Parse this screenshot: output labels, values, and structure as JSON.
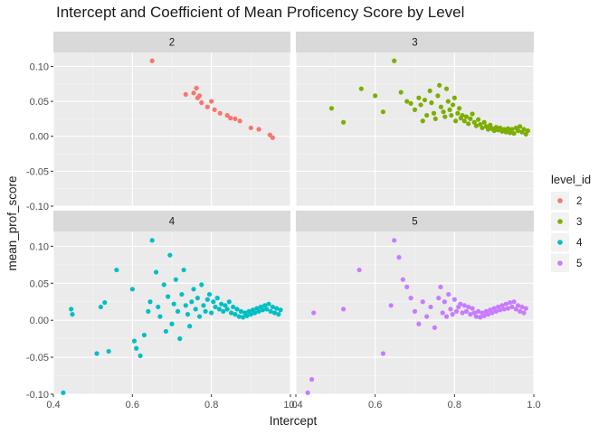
{
  "chart_data": {
    "type": "scatter",
    "title": "Intercept and Coefficient of Mean Proficency Score by Level",
    "xlabel": "Intercept",
    "ylabel": "mean_prof_score",
    "facet_by": "level_id",
    "xlim": [
      0.4,
      1.0
    ],
    "ylim": [
      -0.1,
      0.12
    ],
    "x_ticks": [
      0.4,
      0.6,
      0.8,
      1.0
    ],
    "x_tick_labels": [
      "0.4",
      "0.6",
      "0.8",
      "1.0"
    ],
    "y_ticks": [
      -0.1,
      -0.05,
      0.0,
      0.05,
      0.1
    ],
    "y_tick_labels": [
      "-0.10",
      "-0.05",
      "0.00",
      "0.05",
      "0.10"
    ],
    "grid": true,
    "legend": {
      "title": "level_id",
      "placement": "right"
    },
    "panels": [
      {
        "label": "2",
        "series": "2"
      },
      {
        "label": "3",
        "series": "3"
      },
      {
        "label": "4",
        "series": "4"
      },
      {
        "label": "5",
        "series": "5"
      }
    ],
    "series": [
      {
        "name": "2",
        "color": "#F8766D",
        "points": [
          [
            0.65,
            0.108
          ],
          [
            0.735,
            0.06
          ],
          [
            0.755,
            0.062
          ],
          [
            0.762,
            0.069
          ],
          [
            0.765,
            0.055
          ],
          [
            0.77,
            0.058
          ],
          [
            0.775,
            0.048
          ],
          [
            0.79,
            0.042
          ],
          [
            0.8,
            0.05
          ],
          [
            0.808,
            0.038
          ],
          [
            0.822,
            0.033
          ],
          [
            0.84,
            0.03
          ],
          [
            0.848,
            0.026
          ],
          [
            0.86,
            0.025
          ],
          [
            0.872,
            0.022
          ],
          [
            0.9,
            0.012
          ],
          [
            0.92,
            0.01
          ],
          [
            0.948,
            0.002
          ],
          [
            0.955,
            -0.002
          ]
        ]
      },
      {
        "name": "3",
        "color": "#7CAE00",
        "points": [
          [
            0.49,
            0.04
          ],
          [
            0.52,
            0.02
          ],
          [
            0.565,
            0.068
          ],
          [
            0.6,
            0.058
          ],
          [
            0.62,
            0.035
          ],
          [
            0.648,
            0.108
          ],
          [
            0.665,
            0.063
          ],
          [
            0.68,
            0.05
          ],
          [
            0.69,
            0.047
          ],
          [
            0.7,
            0.038
          ],
          [
            0.71,
            0.055
          ],
          [
            0.715,
            0.045
          ],
          [
            0.72,
            0.022
          ],
          [
            0.725,
            0.052
          ],
          [
            0.73,
            0.03
          ],
          [
            0.738,
            0.065
          ],
          [
            0.742,
            0.048
          ],
          [
            0.748,
            0.033
          ],
          [
            0.752,
            0.025
          ],
          [
            0.758,
            0.058
          ],
          [
            0.762,
            0.073
          ],
          [
            0.766,
            0.042
          ],
          [
            0.772,
            0.035
          ],
          [
            0.776,
            0.028
          ],
          [
            0.78,
            0.068
          ],
          [
            0.784,
            0.05
          ],
          [
            0.788,
            0.038
          ],
          [
            0.792,
            0.03
          ],
          [
            0.796,
            0.045
          ],
          [
            0.8,
            0.055
          ],
          [
            0.803,
            0.022
          ],
          [
            0.808,
            0.033
          ],
          [
            0.812,
            0.04
          ],
          [
            0.816,
            0.026
          ],
          [
            0.82,
            0.03
          ],
          [
            0.825,
            0.022
          ],
          [
            0.83,
            0.028
          ],
          [
            0.835,
            0.018
          ],
          [
            0.84,
            0.025
          ],
          [
            0.845,
            0.032
          ],
          [
            0.85,
            0.02
          ],
          [
            0.855,
            0.015
          ],
          [
            0.86,
            0.024
          ],
          [
            0.865,
            0.017
          ],
          [
            0.87,
            0.012
          ],
          [
            0.875,
            0.02
          ],
          [
            0.88,
            0.014
          ],
          [
            0.885,
            0.01
          ],
          [
            0.89,
            0.016
          ],
          [
            0.895,
            0.011
          ],
          [
            0.9,
            0.008
          ],
          [
            0.905,
            0.013
          ],
          [
            0.91,
            0.009
          ],
          [
            0.915,
            0.012
          ],
          [
            0.92,
            0.007
          ],
          [
            0.925,
            0.01
          ],
          [
            0.93,
            0.006
          ],
          [
            0.935,
            0.011
          ],
          [
            0.94,
            0.005
          ],
          [
            0.945,
            0.01
          ],
          [
            0.95,
            0.004
          ],
          [
            0.955,
            0.012
          ],
          [
            0.96,
            0.008
          ],
          [
            0.965,
            0.014
          ],
          [
            0.97,
            0.006
          ],
          [
            0.975,
            0.01
          ],
          [
            0.98,
            0.003
          ],
          [
            0.985,
            0.008
          ]
        ]
      },
      {
        "name": "4",
        "color": "#00BFC4",
        "points": [
          [
            0.425,
            -0.098
          ],
          [
            0.445,
            0.015
          ],
          [
            0.448,
            0.008
          ],
          [
            0.51,
            -0.045
          ],
          [
            0.52,
            0.018
          ],
          [
            0.53,
            0.024
          ],
          [
            0.54,
            -0.042
          ],
          [
            0.56,
            0.068
          ],
          [
            0.6,
            0.042
          ],
          [
            0.605,
            -0.028
          ],
          [
            0.61,
            -0.038
          ],
          [
            0.62,
            -0.048
          ],
          [
            0.63,
            -0.02
          ],
          [
            0.64,
            0.012
          ],
          [
            0.645,
            0.025
          ],
          [
            0.65,
            0.108
          ],
          [
            0.66,
            0.065
          ],
          [
            0.665,
            0.018
          ],
          [
            0.67,
            0.005
          ],
          [
            0.68,
            0.048
          ],
          [
            0.685,
            -0.015
          ],
          [
            0.69,
            0.032
          ],
          [
            0.695,
            0.088
          ],
          [
            0.7,
            -0.005
          ],
          [
            0.705,
            0.022
          ],
          [
            0.71,
            0.055
          ],
          [
            0.715,
            0.012
          ],
          [
            0.72,
            -0.025
          ],
          [
            0.725,
            0.035
          ],
          [
            0.73,
            0.068
          ],
          [
            0.735,
            0.02
          ],
          [
            0.74,
            0.008
          ],
          [
            0.745,
            -0.008
          ],
          [
            0.75,
            0.025
          ],
          [
            0.755,
            0.042
          ],
          [
            0.76,
            0.015
          ],
          [
            0.765,
            0.03
          ],
          [
            0.77,
            0.005
          ],
          [
            0.775,
            0.048
          ],
          [
            0.78,
            0.02
          ],
          [
            0.785,
            0.012
          ],
          [
            0.79,
            0.028
          ],
          [
            0.795,
            0.035
          ],
          [
            0.8,
            0.01
          ],
          [
            0.805,
            0.025
          ],
          [
            0.81,
            0.018
          ],
          [
            0.815,
            0.03
          ],
          [
            0.82,
            0.015
          ],
          [
            0.825,
            0.022
          ],
          [
            0.83,
            0.012
          ],
          [
            0.835,
            0.02
          ],
          [
            0.84,
            0.015
          ],
          [
            0.845,
            0.025
          ],
          [
            0.85,
            0.01
          ],
          [
            0.855,
            0.018
          ],
          [
            0.86,
            0.008
          ],
          [
            0.865,
            0.015
          ],
          [
            0.87,
            0.005
          ],
          [
            0.875,
            0.012
          ],
          [
            0.88,
            0.004
          ],
          [
            0.885,
            0.01
          ],
          [
            0.89,
            0.006
          ],
          [
            0.895,
            0.012
          ],
          [
            0.9,
            0.008
          ],
          [
            0.905,
            0.014
          ],
          [
            0.91,
            0.01
          ],
          [
            0.915,
            0.016
          ],
          [
            0.92,
            0.012
          ],
          [
            0.925,
            0.018
          ],
          [
            0.93,
            0.014
          ],
          [
            0.935,
            0.02
          ],
          [
            0.94,
            0.015
          ],
          [
            0.945,
            0.022
          ],
          [
            0.95,
            0.012
          ],
          [
            0.955,
            0.018
          ],
          [
            0.96,
            0.01
          ],
          [
            0.965,
            0.016
          ],
          [
            0.97,
            0.008
          ],
          [
            0.975,
            0.014
          ]
        ]
      },
      {
        "name": "5",
        "color": "#C77CFF",
        "points": [
          [
            0.43,
            -0.098
          ],
          [
            0.44,
            -0.08
          ],
          [
            0.445,
            0.01
          ],
          [
            0.52,
            0.015
          ],
          [
            0.56,
            0.068
          ],
          [
            0.62,
            -0.045
          ],
          [
            0.64,
            0.02
          ],
          [
            0.648,
            0.108
          ],
          [
            0.66,
            0.085
          ],
          [
            0.67,
            0.055
          ],
          [
            0.68,
            0.045
          ],
          [
            0.69,
            0.03
          ],
          [
            0.7,
            0.012
          ],
          [
            0.71,
            -0.005
          ],
          [
            0.72,
            0.025
          ],
          [
            0.73,
            0.005
          ],
          [
            0.74,
            0.018
          ],
          [
            0.75,
            -0.01
          ],
          [
            0.76,
            0.03
          ],
          [
            0.765,
            0.045
          ],
          [
            0.77,
            0.01
          ],
          [
            0.775,
            0.025
          ],
          [
            0.78,
            0.005
          ],
          [
            0.785,
            0.035
          ],
          [
            0.79,
            0.015
          ],
          [
            0.795,
            0.008
          ],
          [
            0.8,
            0.028
          ],
          [
            0.805,
            0.012
          ],
          [
            0.81,
            0.018
          ],
          [
            0.815,
            0.022
          ],
          [
            0.82,
            0.01
          ],
          [
            0.825,
            0.02
          ],
          [
            0.83,
            0.012
          ],
          [
            0.835,
            0.018
          ],
          [
            0.84,
            0.008
          ],
          [
            0.845,
            0.016
          ],
          [
            0.85,
            0.01
          ],
          [
            0.855,
            0.005
          ],
          [
            0.86,
            0.012
          ],
          [
            0.865,
            0.004
          ],
          [
            0.87,
            0.01
          ],
          [
            0.875,
            0.006
          ],
          [
            0.88,
            0.012
          ],
          [
            0.885,
            0.008
          ],
          [
            0.89,
            0.014
          ],
          [
            0.895,
            0.01
          ],
          [
            0.9,
            0.016
          ],
          [
            0.905,
            0.012
          ],
          [
            0.91,
            0.018
          ],
          [
            0.915,
            0.014
          ],
          [
            0.92,
            0.02
          ],
          [
            0.925,
            0.015
          ],
          [
            0.93,
            0.022
          ],
          [
            0.935,
            0.016
          ],
          [
            0.94,
            0.024
          ],
          [
            0.945,
            0.018
          ],
          [
            0.95,
            0.025
          ],
          [
            0.955,
            0.015
          ],
          [
            0.96,
            0.02
          ],
          [
            0.965,
            0.012
          ],
          [
            0.97,
            0.018
          ],
          [
            0.975,
            0.01
          ],
          [
            0.98,
            0.016
          ]
        ]
      }
    ]
  }
}
